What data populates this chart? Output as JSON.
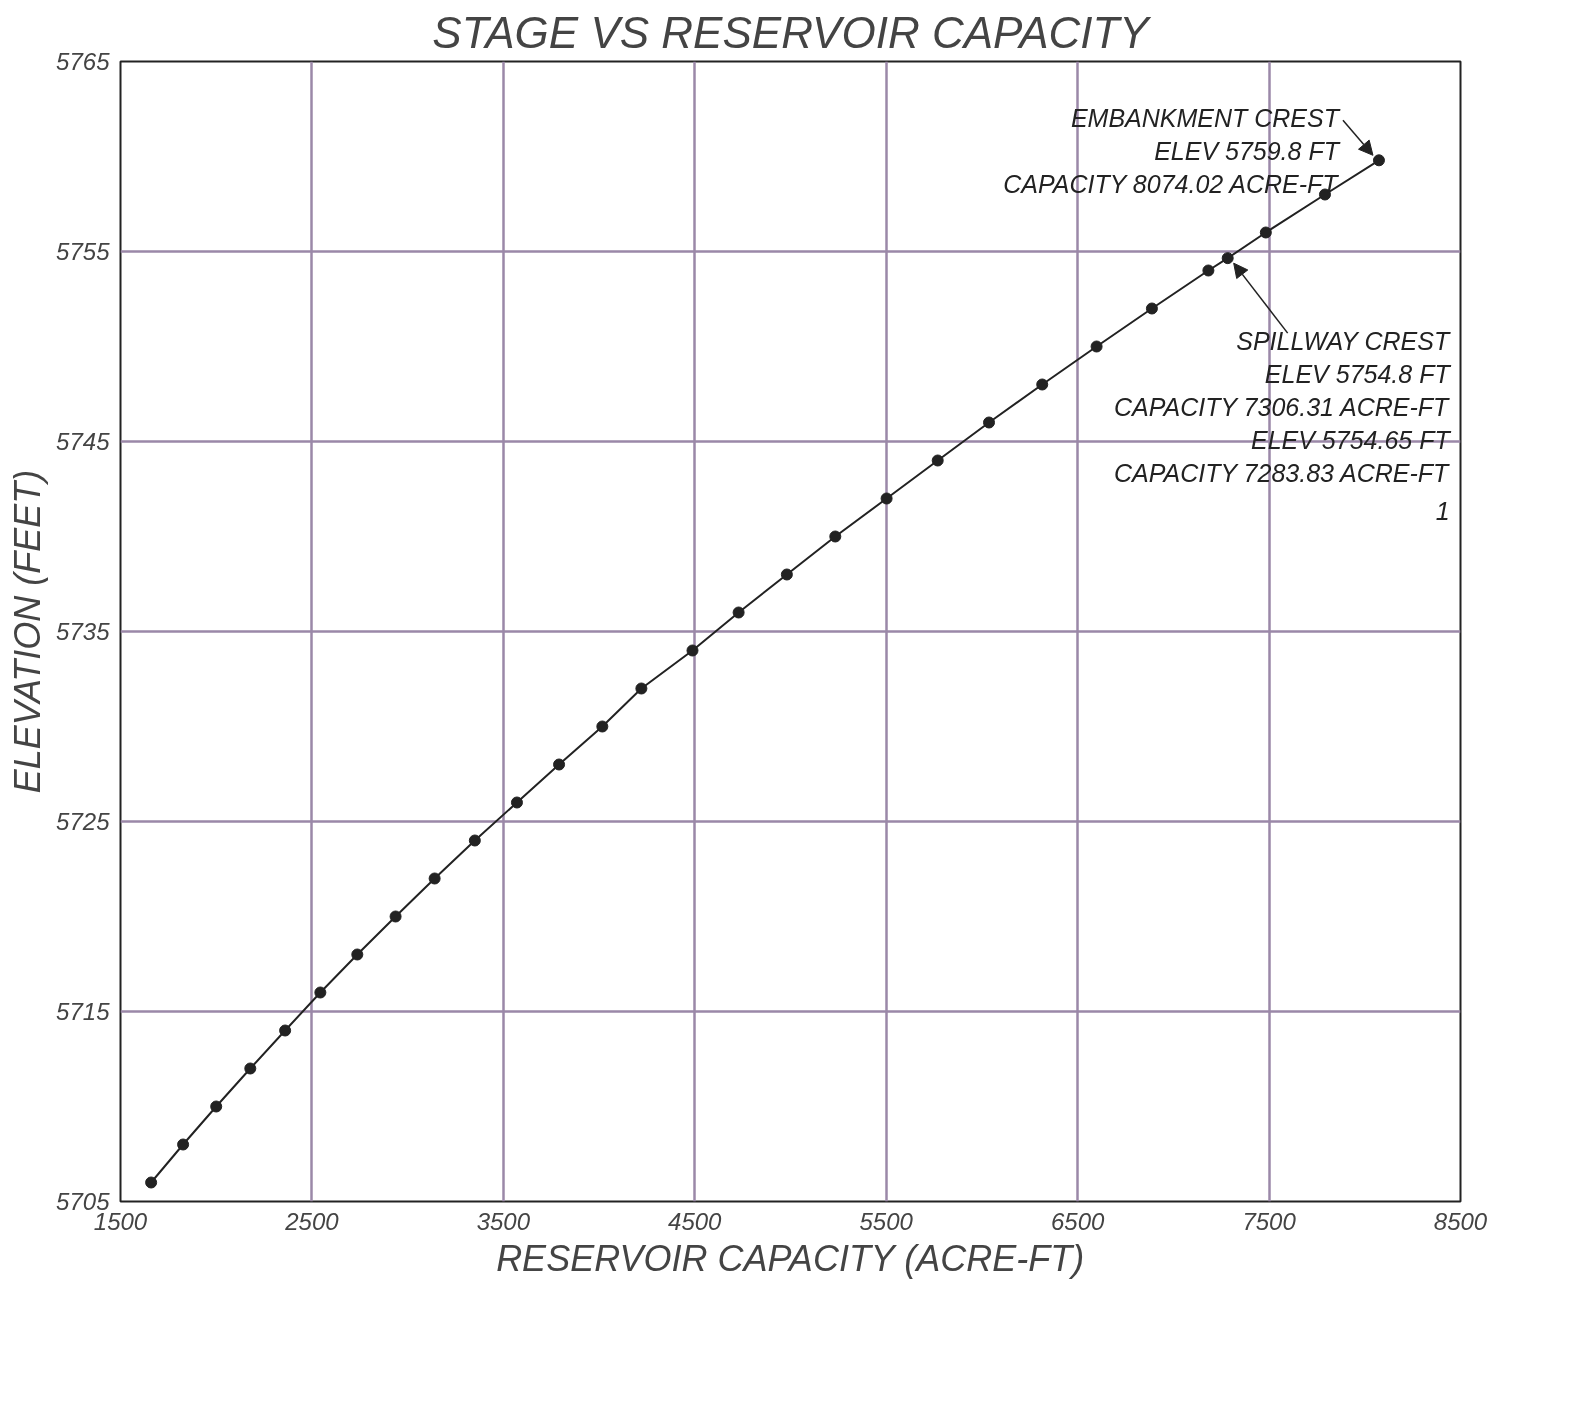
{
  "chart_data": {
    "type": "line",
    "title": "STAGE VS RESERVOIR CAPACITY",
    "xlabel": "RESERVOIR CAPACITY (ACRE-FT)",
    "ylabel": "ELEVATION (FEET)",
    "x": [
      1660,
      1827,
      2000,
      2178,
      2360,
      2544,
      2737,
      2937,
      3141,
      3351,
      3571,
      3791,
      4017,
      4221,
      4488,
      4729,
      4981,
      5234,
      5502,
      5769,
      6037,
      6315,
      6599,
      6888,
      7183,
      7283.83,
      7483,
      7792,
      8074.02
    ],
    "series": [
      {
        "color": "#222222",
        "values": [
          5706,
          5708,
          5710,
          5712,
          5714,
          5716,
          5718,
          5720,
          5722,
          5724,
          5726,
          5728,
          5730,
          5732,
          5734,
          5736,
          5738,
          5740,
          5742,
          5744,
          5746,
          5748,
          5750,
          5752,
          5754,
          5754.65,
          5756,
          5758,
          5759.8
        ]
      }
    ],
    "xlim": [
      1500,
      8500
    ],
    "ylim": [
      5705,
      5765
    ],
    "xticks": [
      1500,
      2500,
      3500,
      4500,
      5500,
      6500,
      7500,
      8500
    ],
    "yticks": [
      5705,
      5715,
      5725,
      5735,
      5745,
      5755,
      5765
    ],
    "grid": true,
    "marker": "circle",
    "line_style": "solid",
    "annotations": [
      {
        "text": "EMBANKMENT CREST\nELEV 5759.8 FT\nCAPACITY 8074.02 ACRE-FT",
        "x": 8074.02,
        "y": 5759.8
      },
      {
        "text": "SPILLWAY CREST\nELEV 5754.8 FT\nCAPACITY 7306.31 ACRE-FT\nELEV 5754.65 FT\nCAPACITY 7283.83 ACRE-FT\n1",
        "x": 7283.83,
        "y": 5754.65
      }
    ]
  }
}
